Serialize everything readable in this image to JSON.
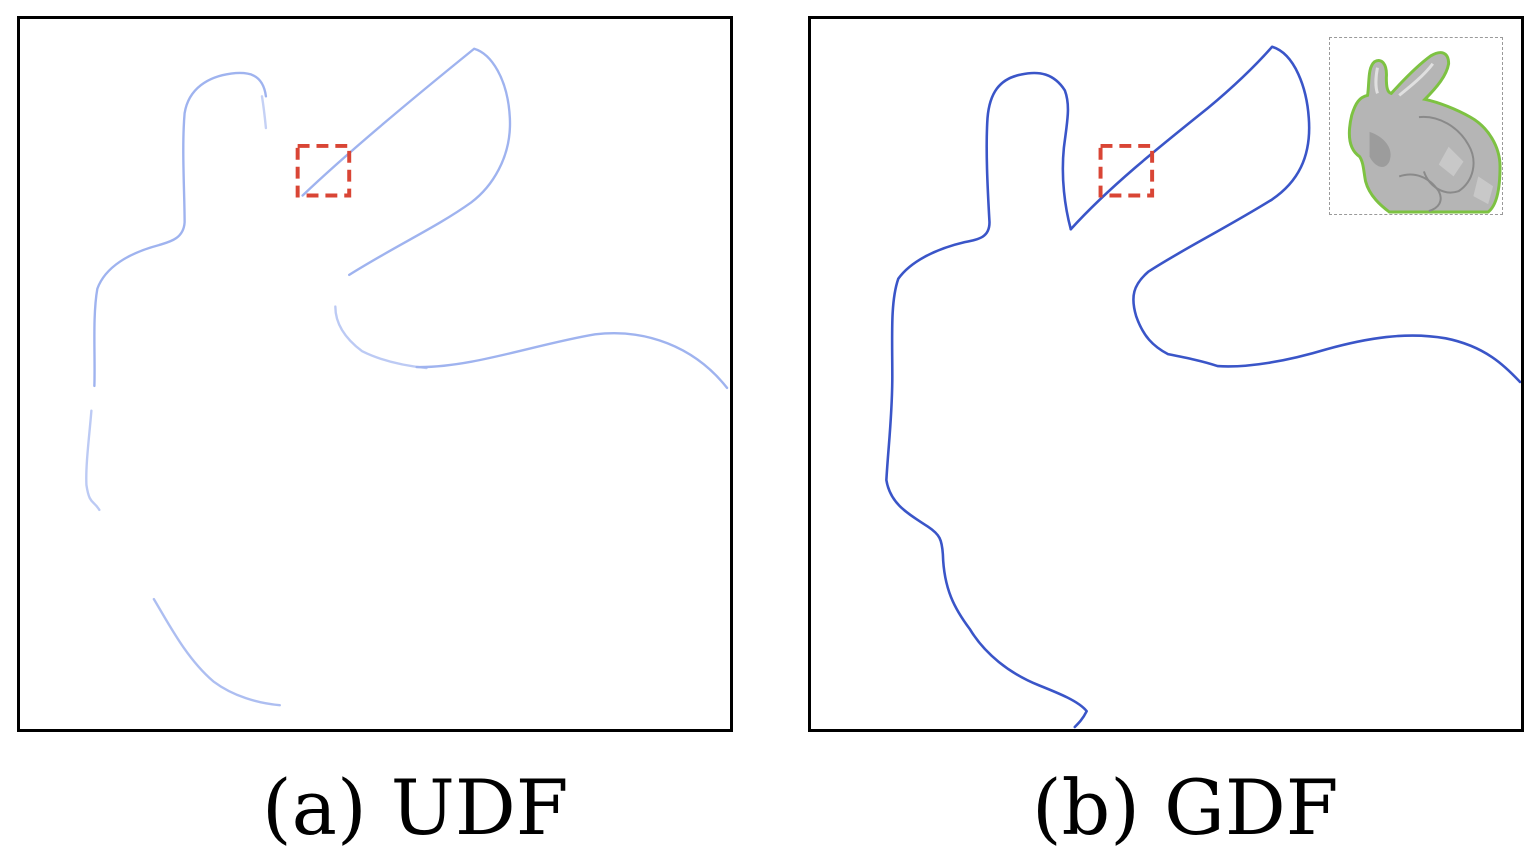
{
  "figure": {
    "panels": [
      {
        "id": "a",
        "caption": "(a) UDF",
        "curve_color": "#8fa6ec"
      },
      {
        "id": "b",
        "caption": "(b) GDF",
        "curve_color": "#3a55c8"
      }
    ],
    "highlight_box_color": "#d94535",
    "inset": {
      "mesh_color": "#a9a9a9",
      "outline_color": "#7dc242"
    }
  }
}
